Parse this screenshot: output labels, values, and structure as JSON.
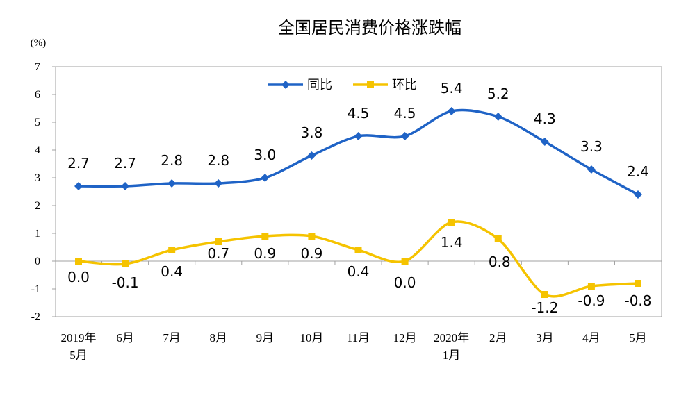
{
  "chart_data": {
    "type": "line",
    "title": "全国居民消费价格涨跌幅",
    "ylabel": "(%)",
    "xlabel": "",
    "ylim": [
      -2,
      7
    ],
    "yticks": [
      "7",
      "6",
      "5",
      "4",
      "3",
      "2",
      "1",
      "0",
      "-1",
      "-2"
    ],
    "ytick_values": [
      7,
      6,
      5,
      4,
      3,
      2,
      1,
      0,
      -1,
      -2
    ],
    "categories": [
      [
        "2019年",
        "5月"
      ],
      [
        "6月"
      ],
      [
        "7月"
      ],
      [
        "8月"
      ],
      [
        "9月"
      ],
      [
        "10月"
      ],
      [
        "11月"
      ],
      [
        "12月"
      ],
      [
        "2020年",
        "1月"
      ],
      [
        "2月"
      ],
      [
        "3月"
      ],
      [
        "4月"
      ],
      [
        "5月"
      ]
    ],
    "legend_position": "top-center",
    "series": [
      {
        "name": "同比",
        "color": "#1f63c6",
        "marker": "diamond",
        "values": [
          2.7,
          2.7,
          2.8,
          2.8,
          3.0,
          3.8,
          4.5,
          4.5,
          5.4,
          5.2,
          4.3,
          3.3,
          2.4
        ],
        "labels": [
          "2.7",
          "2.7",
          "2.8",
          "2.8",
          "3.0",
          "3.8",
          "4.5",
          "4.5",
          "5.4",
          "5.2",
          "4.3",
          "3.3",
          "2.4"
        ]
      },
      {
        "name": "环比",
        "color": "#f5c300",
        "marker": "square",
        "values": [
          0.0,
          -0.1,
          0.4,
          0.7,
          0.9,
          0.9,
          0.4,
          0.0,
          1.4,
          0.8,
          -1.2,
          -0.9,
          -0.8
        ],
        "labels": [
          "0.0",
          "-0.1",
          "0.4",
          "0.7",
          "0.9",
          "0.9",
          "0.4",
          "0.0",
          "1.4",
          "0.8",
          "-1.2",
          "-0.9",
          "-0.8"
        ]
      }
    ]
  }
}
